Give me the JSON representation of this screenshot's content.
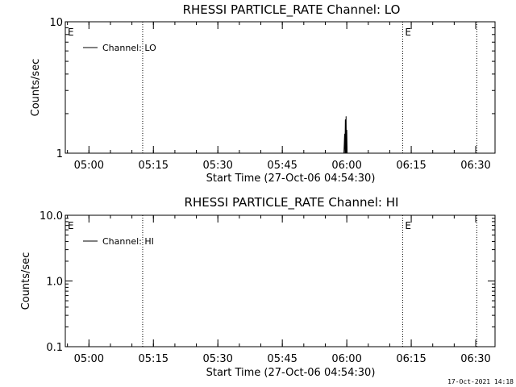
{
  "chart_data": [
    {
      "type": "line",
      "title": "RHESSI PARTICLE_RATE Channel: LO",
      "xlabel": "Start Time (27-Oct-06 04:54:30)",
      "ylabel": "Counts/sec",
      "y_scale": "log",
      "xlim": [
        "04:54:30",
        "06:34:30"
      ],
      "ylim": [
        1,
        10
      ],
      "x_ticks": [
        "05:00",
        "05:15",
        "05:30",
        "05:45",
        "06:00",
        "06:15",
        "06:30"
      ],
      "y_ticks": [
        "1",
        "10"
      ],
      "legend": {
        "position": "top-left",
        "entries": [
          "Channel: LO"
        ]
      },
      "vertical_markers": [
        {
          "time": "04:54:30",
          "label": "E",
          "line_style": "none"
        },
        {
          "time": "05:12:30",
          "label": "",
          "line_style": "dotted"
        },
        {
          "time": "06:13:00",
          "label": "E",
          "line_style": "dotted"
        },
        {
          "time": "06:30:15",
          "label": "",
          "line_style": "dotted"
        }
      ],
      "series": [
        {
          "name": "Channel: LO",
          "x": [
            "05:59:20",
            "05:59:30",
            "05:59:35",
            "05:59:40",
            "05:59:45",
            "05:59:50",
            "05:59:55",
            "06:00:00",
            "06:00:05",
            "06:00:10"
          ],
          "y": [
            1,
            1.4,
            1,
            1.8,
            1,
            1.9,
            1,
            1.5,
            1,
            1
          ]
        }
      ]
    },
    {
      "type": "line",
      "title": "RHESSI PARTICLE_RATE Channel: HI",
      "xlabel": "Start Time (27-Oct-06 04:54:30)",
      "ylabel": "Counts/sec",
      "y_scale": "log",
      "xlim": [
        "04:54:30",
        "06:34:30"
      ],
      "ylim": [
        0.1,
        10
      ],
      "x_ticks": [
        "05:00",
        "05:15",
        "05:30",
        "05:45",
        "06:00",
        "06:15",
        "06:30"
      ],
      "y_ticks": [
        "0.1",
        "1.0",
        "10.0"
      ],
      "legend": {
        "position": "top-left",
        "entries": [
          "Channel: HI"
        ]
      },
      "vertical_markers": [
        {
          "time": "04:54:30",
          "label": "E",
          "line_style": "none"
        },
        {
          "time": "05:12:30",
          "label": "",
          "line_style": "dotted"
        },
        {
          "time": "06:13:00",
          "label": "E",
          "line_style": "dotted"
        },
        {
          "time": "06:30:15",
          "label": "",
          "line_style": "dotted"
        }
      ],
      "series": [
        {
          "name": "Channel: HI",
          "x": [],
          "y": []
        }
      ]
    }
  ],
  "footer": {
    "timestamp": "17-Oct-2021 14:18"
  }
}
